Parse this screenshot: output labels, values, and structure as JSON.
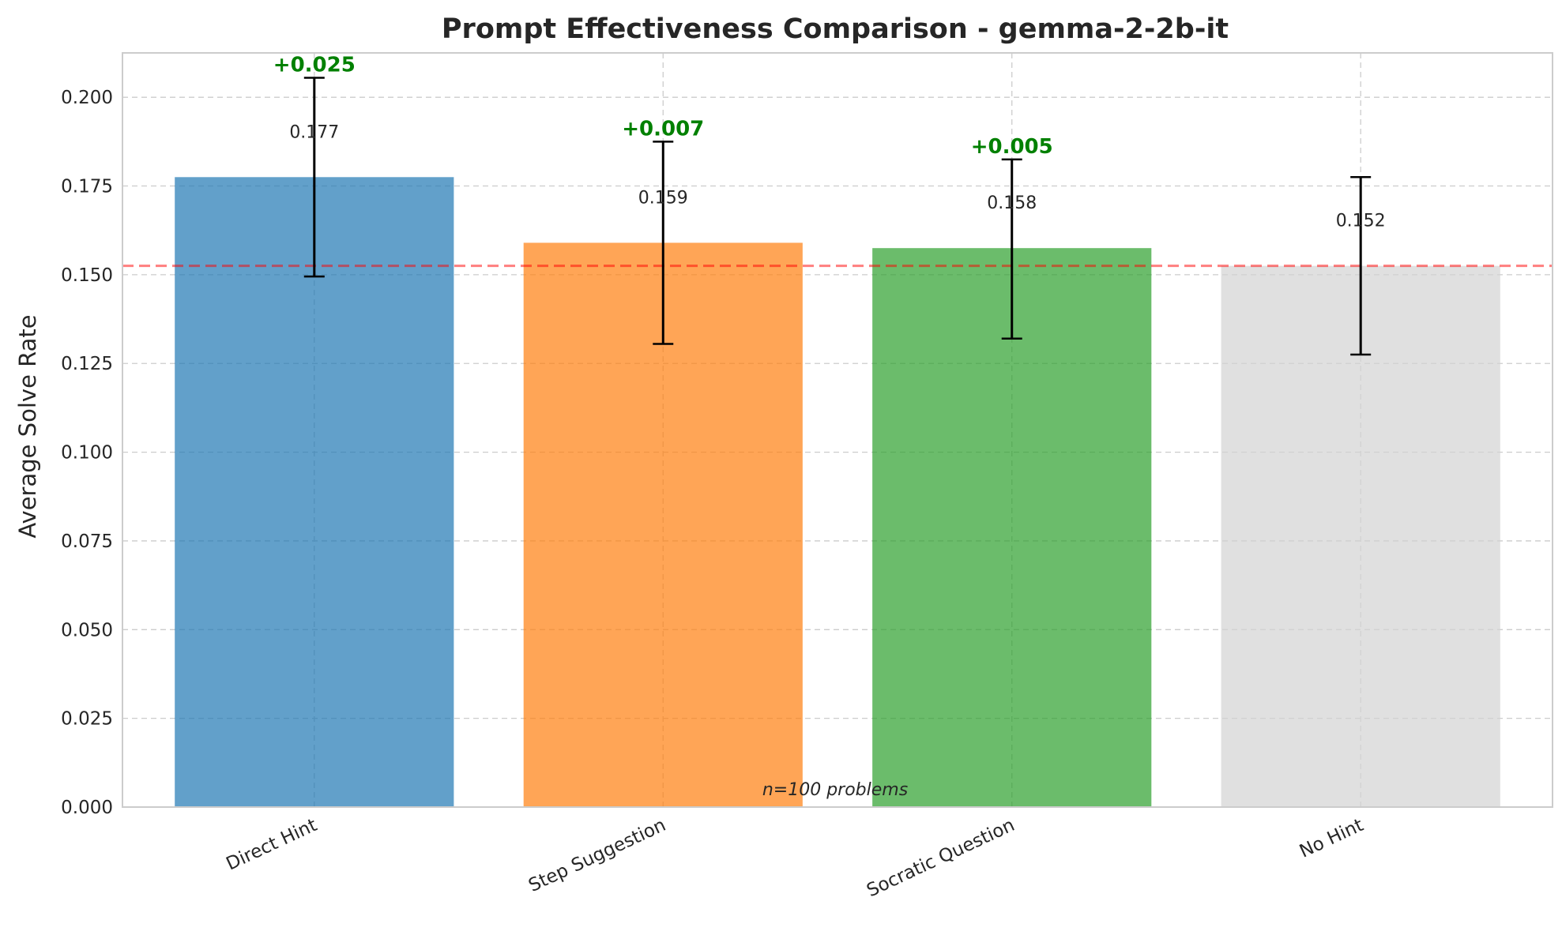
{
  "chart_data": {
    "type": "bar",
    "title": "Prompt Effectiveness Comparison - gemma-2-2b-it",
    "xlabel": "",
    "ylabel": "Average Solve Rate",
    "ylim": [
      0,
      0.2125
    ],
    "yticks": [
      "0.000",
      "0.025",
      "0.050",
      "0.075",
      "0.100",
      "0.125",
      "0.150",
      "0.175",
      "0.200"
    ],
    "ytick_values": [
      0,
      0.025,
      0.05,
      0.075,
      0.1,
      0.125,
      0.15,
      0.175,
      0.2
    ],
    "categories": [
      "Direct Hint",
      "Step Suggestion",
      "Socratic Question",
      "No Hint"
    ],
    "values": [
      0.1775,
      0.159,
      0.1575,
      0.1525
    ],
    "value_labels": [
      "0.177",
      "0.159",
      "0.158",
      "0.152"
    ],
    "error_low": [
      0.1495,
      0.1305,
      0.132,
      0.1275
    ],
    "error_high": [
      0.2055,
      0.1875,
      0.1825,
      0.1775
    ],
    "delta_labels": [
      "+0.025",
      "+0.007",
      "+0.005",
      ""
    ],
    "colors": [
      "#1f77b4",
      "#ff7f0e",
      "#2ca02c",
      "#d3d3d3"
    ],
    "bar_opacity": 0.7,
    "delta_color": "#008000",
    "baseline": {
      "value": 0.1525,
      "color": "#ff0000",
      "style": "dashed"
    },
    "note": "n=100 problems",
    "grid": true,
    "legend": "none"
  }
}
